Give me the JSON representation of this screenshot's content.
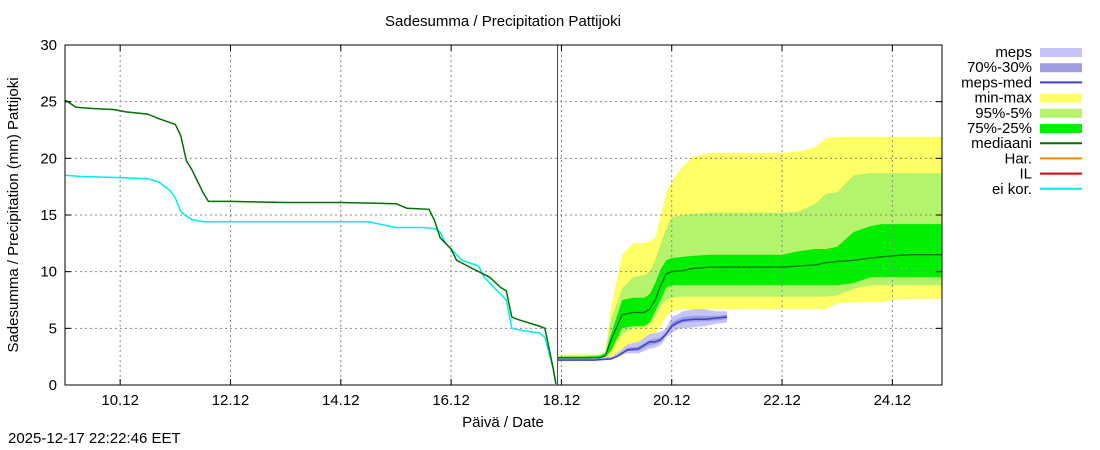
{
  "chart_data": {
    "type": "area",
    "title": "Sadesumma / Precipitation  Pattijoki",
    "xlabel": "Päivä / Date",
    "ylabel": "Sadesumma / Precipitation (mm)  Pattijoki",
    "ylim": [
      0,
      30
    ],
    "xlim_days": [
      9.0,
      24.9
    ],
    "y_ticks": [
      0,
      5,
      10,
      15,
      20,
      25,
      30
    ],
    "x_ticks": [
      {
        "day": 10.0,
        "label": "10.12"
      },
      {
        "day": 12.0,
        "label": "12.12"
      },
      {
        "day": 14.0,
        "label": "14.12"
      },
      {
        "day": 16.0,
        "label": "16.12"
      },
      {
        "day": 18.0,
        "label": "18.12"
      },
      {
        "day": 20.0,
        "label": "20.12"
      },
      {
        "day": 22.0,
        "label": "22.12"
      },
      {
        "day": 24.0,
        "label": "24.12"
      }
    ],
    "grid": true,
    "forecast_start_day": 17.93,
    "colors": {
      "meps": "#c4c4f8",
      "meps_70_30": "#9d9de0",
      "meps_med": "#4040c8",
      "min_max": "#ffff66",
      "p95_5": "#b4f46c",
      "p75_25": "#00ee00",
      "mediaani": "#007000",
      "har": "#ff8c00",
      "il": "#dd0000",
      "ei_kor": "#00eeee"
    },
    "legend": {
      "placement": "right",
      "items": [
        {
          "key": "meps",
          "label": "meps",
          "style": "band"
        },
        {
          "key": "meps_70_30",
          "label": "70%-30%",
          "style": "band"
        },
        {
          "key": "meps_med",
          "label": "meps-med",
          "style": "line"
        },
        {
          "key": "min_max",
          "label": "min-max",
          "style": "band"
        },
        {
          "key": "p95_5",
          "label": "95%-5%",
          "style": "band"
        },
        {
          "key": "p75_25",
          "label": "75%-25%",
          "style": "band"
        },
        {
          "key": "mediaani",
          "label": "mediaani",
          "style": "line"
        },
        {
          "key": "har",
          "label": "Har.",
          "style": "line"
        },
        {
          "key": "il",
          "label": "IL",
          "style": "line"
        },
        {
          "key": "ei_kor",
          "label": "ei kor.",
          "style": "line"
        }
      ]
    },
    "series": {
      "mediaani_history": {
        "x": [
          9.0,
          9.05,
          9.2,
          9.5,
          9.9,
          10.1,
          10.5,
          10.7,
          11.0,
          11.1,
          11.2,
          11.3,
          11.4,
          11.5,
          11.6,
          11.8,
          12.0,
          13.0,
          14.0,
          15.0,
          15.2,
          15.6,
          15.7,
          15.8,
          15.9,
          16.0,
          16.1,
          16.3,
          16.5,
          16.7,
          16.9,
          17.0,
          17.1,
          17.2,
          17.6,
          17.7,
          17.85,
          17.9
        ],
        "y": [
          25.1,
          25.0,
          24.5,
          24.4,
          24.3,
          24.1,
          23.9,
          23.5,
          23.0,
          22.0,
          19.8,
          19.0,
          18.0,
          17.0,
          16.2,
          16.2,
          16.2,
          16.1,
          16.1,
          16.0,
          15.6,
          15.5,
          14.5,
          13.0,
          12.5,
          12.0,
          11.0,
          10.5,
          10.0,
          9.5,
          8.6,
          8.3,
          6.0,
          5.8,
          5.2,
          5.0,
          1.5,
          0.1
        ]
      },
      "ei_kor": {
        "x": [
          9.0,
          9.3,
          10.0,
          10.5,
          10.7,
          10.9,
          11.0,
          11.1,
          11.2,
          11.3,
          11.5,
          12.0,
          13.0,
          14.0,
          14.5,
          15.0,
          15.5,
          15.7,
          15.8,
          15.9,
          16.0,
          16.2,
          16.5,
          16.6,
          16.8,
          16.9,
          17.0,
          17.1,
          17.3,
          17.6,
          17.7,
          17.85,
          17.9
        ],
        "y": [
          18.5,
          18.4,
          18.3,
          18.2,
          17.9,
          17.2,
          16.5,
          15.3,
          14.9,
          14.6,
          14.4,
          14.4,
          14.4,
          14.4,
          14.4,
          13.9,
          13.9,
          13.8,
          13.5,
          12.5,
          12.0,
          11.0,
          10.5,
          9.5,
          8.5,
          8.0,
          7.5,
          5.0,
          4.8,
          4.6,
          4.2,
          1.5,
          0.1
        ]
      },
      "forecast_x": [
        17.93,
        18.1,
        18.4,
        18.7,
        18.8,
        18.9,
        19.1,
        19.3,
        19.5,
        19.6,
        19.7,
        19.8,
        19.9,
        20.0,
        20.2,
        20.4,
        20.7,
        21.0,
        21.5,
        22.0,
        22.3,
        22.6,
        22.8,
        23.0,
        23.3,
        23.6,
        23.8,
        24.0,
        24.3,
        24.6,
        24.9
      ],
      "min_max_upper": [
        2.6,
        2.7,
        2.7,
        2.7,
        3.0,
        7.0,
        11.5,
        12.5,
        12.5,
        12.7,
        13.0,
        15.0,
        17.0,
        18.0,
        19.3,
        20.2,
        20.5,
        20.5,
        20.5,
        20.5,
        20.6,
        21.0,
        21.8,
        21.9,
        21.9,
        21.9,
        21.9,
        21.9,
        21.9,
        21.9,
        21.9
      ],
      "min_max_lower": [
        2.3,
        2.3,
        2.3,
        2.3,
        2.3,
        2.3,
        2.5,
        3.5,
        4.0,
        4.0,
        4.5,
        5.2,
        6.0,
        6.5,
        6.7,
        6.7,
        6.7,
        6.7,
        6.7,
        6.7,
        6.7,
        6.7,
        6.7,
        7.2,
        7.3,
        7.3,
        7.3,
        7.5,
        7.6,
        7.6,
        7.6
      ],
      "p95_5_upper": [
        2.5,
        2.6,
        2.6,
        2.6,
        2.9,
        5.8,
        8.5,
        9.5,
        9.7,
        10.0,
        11.0,
        12.5,
        13.8,
        14.8,
        15.0,
        15.1,
        15.2,
        15.2,
        15.2,
        15.2,
        15.3,
        16.0,
        16.9,
        17.0,
        18.5,
        18.7,
        18.7,
        18.7,
        18.7,
        18.7,
        18.7
      ],
      "p95_5_lower": [
        2.3,
        2.3,
        2.3,
        2.4,
        2.5,
        3.5,
        4.5,
        5.0,
        5.2,
        5.5,
        6.0,
        7.0,
        7.5,
        7.7,
        7.8,
        7.8,
        7.8,
        7.8,
        7.8,
        7.8,
        7.8,
        7.8,
        7.8,
        7.9,
        8.5,
        8.8,
        8.8,
        8.8,
        8.8,
        8.8,
        8.8
      ],
      "p75_25_upper": [
        2.5,
        2.5,
        2.5,
        2.6,
        2.8,
        4.5,
        7.5,
        7.7,
        7.7,
        8.0,
        9.0,
        10.2,
        11.0,
        11.2,
        11.3,
        11.4,
        11.5,
        11.5,
        11.5,
        11.5,
        11.8,
        12.0,
        12.0,
        12.2,
        13.5,
        14.0,
        14.2,
        14.2,
        14.2,
        14.2,
        14.2
      ],
      "p75_25_lower": [
        2.3,
        2.3,
        2.3,
        2.4,
        2.5,
        3.0,
        5.0,
        5.2,
        5.2,
        5.5,
        6.5,
        7.5,
        8.6,
        8.8,
        8.8,
        8.8,
        8.8,
        8.8,
        8.8,
        8.8,
        8.8,
        8.8,
        8.8,
        8.8,
        9.0,
        9.5,
        9.5,
        9.5,
        9.5,
        9.5,
        9.5
      ],
      "mediaani_forecast": [
        2.4,
        2.4,
        2.4,
        2.4,
        2.6,
        4.0,
        6.2,
        6.4,
        6.4,
        6.7,
        7.5,
        8.8,
        9.8,
        10.0,
        10.1,
        10.3,
        10.4,
        10.4,
        10.4,
        10.4,
        10.5,
        10.6,
        10.8,
        10.9,
        11.0,
        11.2,
        11.3,
        11.4,
        11.5,
        11.5,
        11.5
      ],
      "meps_x": [
        17.93,
        18.2,
        18.6,
        18.9,
        19.0,
        19.2,
        19.4,
        19.6,
        19.7,
        19.8,
        19.9,
        20.0,
        20.1,
        20.2,
        20.4,
        20.6,
        20.8,
        21.0
      ],
      "meps_upper": [
        2.4,
        2.4,
        2.4,
        2.5,
        2.8,
        3.6,
        3.8,
        4.5,
        4.6,
        4.7,
        5.0,
        6.0,
        6.2,
        6.5,
        6.7,
        6.7,
        6.5,
        6.5
      ],
      "meps_lower": [
        2.2,
        2.2,
        2.2,
        2.2,
        2.5,
        2.8,
        2.8,
        3.2,
        3.3,
        3.5,
        4.2,
        4.6,
        4.9,
        5.0,
        5.1,
        5.2,
        5.4,
        5.5
      ],
      "meps_70_upper": [
        2.3,
        2.3,
        2.3,
        2.4,
        2.6,
        3.3,
        3.4,
        4.0,
        4.1,
        4.2,
        4.7,
        5.5,
        5.8,
        6.0,
        6.1,
        6.1,
        6.1,
        6.2
      ],
      "meps_70_lower": [
        2.2,
        2.2,
        2.2,
        2.3,
        2.5,
        3.0,
        3.0,
        3.5,
        3.6,
        3.8,
        4.4,
        5.0,
        5.3,
        5.5,
        5.6,
        5.6,
        5.7,
        5.8
      ],
      "meps_med": [
        2.2,
        2.2,
        2.2,
        2.3,
        2.5,
        3.1,
        3.2,
        3.8,
        3.8,
        4.0,
        4.5,
        5.2,
        5.5,
        5.7,
        5.8,
        5.8,
        5.9,
        6.0
      ]
    }
  },
  "footer": {
    "timestamp": "2025-12-17 22:22:46 EET"
  }
}
